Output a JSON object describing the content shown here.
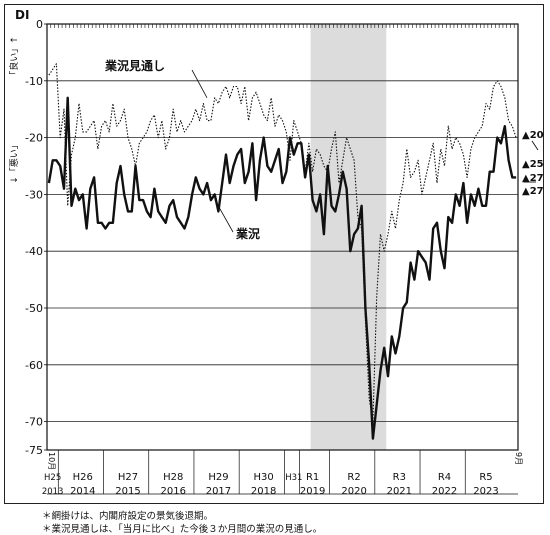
{
  "chart_data": {
    "type": "line",
    "ylabel_top": "DI",
    "ylabel_side_up": "「良い」↑",
    "ylabel_side_down": "↓「悪い」",
    "ylim": [
      -75,
      0
    ],
    "yticks": [
      0,
      -10,
      -20,
      -30,
      -40,
      -50,
      -60,
      -70,
      -75
    ],
    "grid_y": [
      -10,
      -20,
      -30,
      -40,
      -50,
      -60,
      -70
    ],
    "shaded_recession": {
      "start_month": 70,
      "end_month": 89
    },
    "x_start_label": "10月",
    "x_end_label": "9月",
    "x_year_labels": [
      {
        "era": "H25",
        "year": "2013",
        "center_month": 1
      },
      {
        "era": "H26",
        "year": "2014",
        "center_month": 9
      },
      {
        "era": "H27",
        "year": "2015",
        "center_month": 21
      },
      {
        "era": "H28",
        "year": "2016",
        "center_month": 33
      },
      {
        "era": "H29",
        "year": "2017",
        "center_month": 45
      },
      {
        "era": "H30",
        "year": "2018",
        "center_month": 57
      },
      {
        "era": "H31",
        "year": "",
        "center_month": 65
      },
      {
        "era": "R1",
        "year": "2019",
        "center_month": 70
      },
      {
        "era": "R2",
        "year": "2020",
        "center_month": 81
      },
      {
        "era": "R3",
        "year": "2021",
        "center_month": 93
      },
      {
        "era": "R4",
        "year": "2022",
        "center_month": 105
      },
      {
        "era": "R5",
        "year": "2023",
        "center_month": 116
      }
    ],
    "year_boundaries": [
      3,
      15,
      27,
      39,
      51,
      63,
      67,
      75,
      87,
      99,
      111
    ],
    "series": [
      {
        "name": "業況",
        "style": "solid",
        "values": [
          -28,
          -24,
          -24,
          -25,
          -29,
          -13,
          -32,
          -29,
          -31,
          -30,
          -36,
          -29,
          -27,
          -35,
          -35,
          -36,
          -35,
          -35,
          -28,
          -25,
          -30,
          -33,
          -33,
          -25,
          -31,
          -31,
          -33,
          -34,
          -29,
          -33,
          -34,
          -35,
          -32,
          -31,
          -34,
          -35,
          -36,
          -34,
          -30,
          -27,
          -29,
          -30,
          -28,
          -31,
          -30,
          -33,
          -28,
          -23,
          -28,
          -25,
          -23,
          -22,
          -28,
          -26,
          -21,
          -31,
          -24,
          -20,
          -25,
          -26,
          -24,
          -22,
          -28,
          -26,
          -20,
          -23,
          -21,
          -21,
          -27,
          -23,
          -31,
          -33,
          -30,
          -37,
          -25,
          -32,
          -33,
          -30,
          -26,
          -29,
          -40,
          -37,
          -36,
          -32,
          -50,
          -60,
          -73,
          -67,
          -61,
          -57,
          -62,
          -55,
          -58,
          -55,
          -50,
          -49,
          -42,
          -45,
          -40,
          -41,
          -42,
          -45,
          -36,
          -35,
          -40,
          -43,
          -34,
          -35,
          -30,
          -32,
          -28,
          -35,
          -30,
          -32,
          -29,
          -32,
          -32,
          -26,
          -26,
          -20,
          -21,
          -18,
          -24,
          -27,
          -27
        ]
      },
      {
        "name": "業況見通し",
        "style": "dotted",
        "values": [
          -9,
          -8,
          -7,
          -20,
          -15,
          -32,
          -23,
          -20,
          -14,
          -19,
          -19,
          -18,
          -17,
          -22,
          -18,
          -17,
          -19,
          -14,
          -18,
          -17,
          -15,
          -20,
          -22,
          -25,
          -21,
          -20,
          -19,
          -17,
          -16,
          -20,
          -17,
          -22,
          -20,
          -15,
          -19,
          -17,
          -19,
          -18,
          -17,
          -15,
          -17,
          -14,
          -17,
          -17,
          -13,
          -14,
          -12,
          -11,
          -13,
          -11,
          -11,
          -14,
          -11,
          -17,
          -13,
          -12,
          -14,
          -16,
          -17,
          -13,
          -18,
          -16,
          -17,
          -19,
          -24,
          -17,
          -19,
          -21,
          -26,
          -21,
          -26,
          -22,
          -23,
          -25,
          -26,
          -22,
          -19,
          -28,
          -24,
          -20,
          -22,
          -24,
          -34,
          -36,
          -52,
          -66,
          -70,
          -48,
          -37,
          -40,
          -37,
          -33,
          -36,
          -31,
          -28,
          -22,
          -27,
          -26,
          -24,
          -30,
          -27,
          -24,
          -21,
          -28,
          -22,
          -25,
          -18,
          -22,
          -20,
          -21,
          -23,
          -27,
          -22,
          -20,
          -19,
          -18,
          -14,
          -15,
          -11,
          -10,
          -11,
          -13,
          -17,
          -18,
          -20
        ]
      }
    ],
    "series_labels": [
      {
        "text": "業況見通し",
        "series": 1
      },
      {
        "text": "業況",
        "series": 0
      }
    ],
    "right_annotations": [
      {
        "text": "▲20",
        "series": 1,
        "value": -20
      },
      {
        "text": "▲25",
        "series": 1,
        "value": -25
      },
      {
        "text": "▲27",
        "series": 0,
        "value": -27
      },
      {
        "text": "▲27",
        "series": 0,
        "value": -27
      }
    ]
  },
  "notes": [
    "＊網掛けは、内閣府設定の景気後退期。",
    "＊業況見通しは、「当月に比べ」た今後３か月間の業況の見通し。"
  ]
}
